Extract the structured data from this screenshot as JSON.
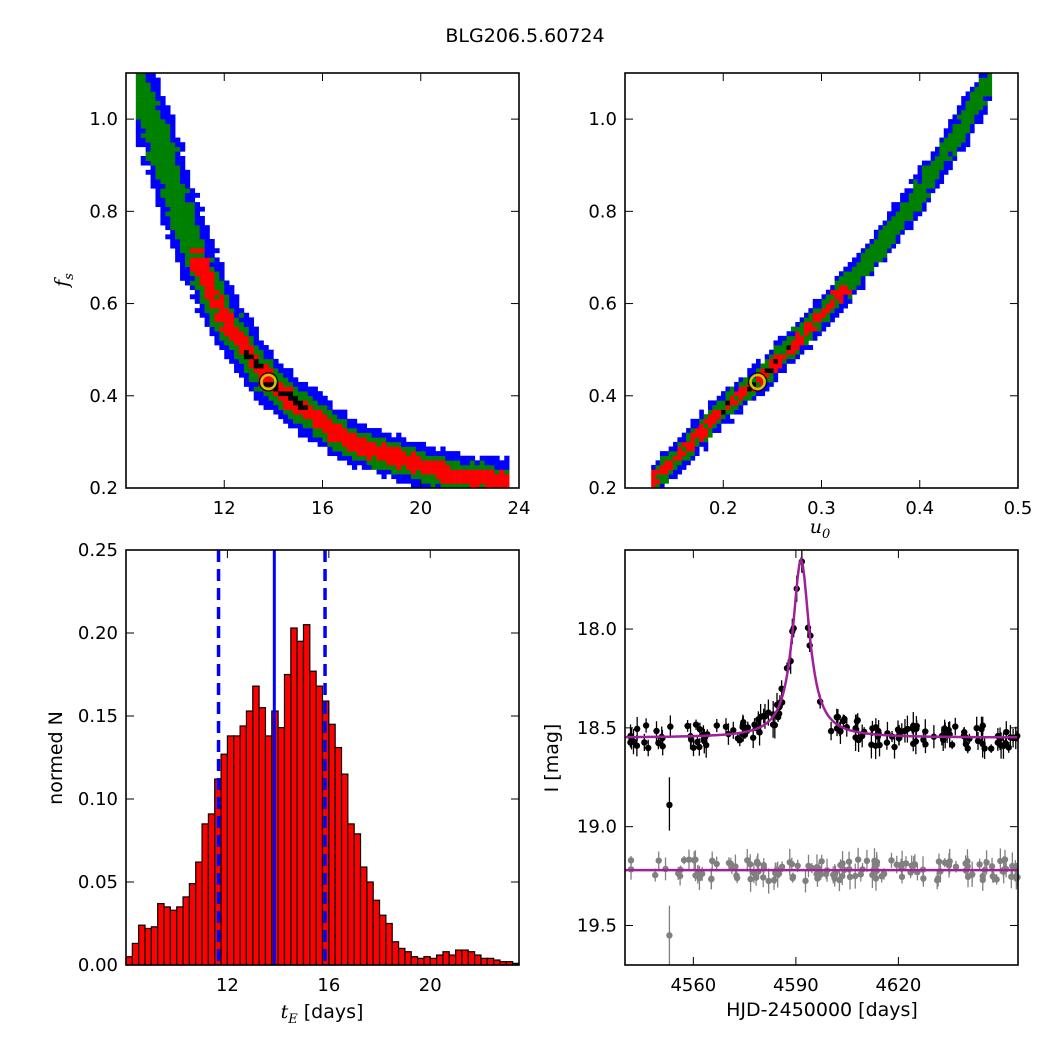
{
  "figure": {
    "title": "BLG206.5.60724"
  },
  "colors": {
    "outer_contour": "#0000ff",
    "middle_contour": "#008000",
    "inner_contour": "#ff0000",
    "best_contour": "#000000",
    "best_marker_ring": "#c8c800",
    "histogram_bar": "#ff0000",
    "median_line": "#0000ff",
    "model_curve": "#a0209a",
    "data_primary": "#000000",
    "data_secondary": "#808080"
  },
  "chart_data": [
    {
      "type": "heatmap",
      "panel": "top-left",
      "xlabel": "",
      "ylabel": "f_s",
      "ylabel_display": "f",
      "ylabel_sub": "s",
      "xlim": [
        8,
        24
      ],
      "ylim": [
        0.2,
        1.1
      ],
      "xticks": [
        "12",
        "16",
        "20",
        "24"
      ],
      "yticks": [
        "0.2",
        "0.4",
        "0.6",
        "0.8",
        "1.0"
      ],
      "ridge_x": [
        8.5,
        9.3,
        10.2,
        11.1,
        12.0,
        13.0,
        13.8,
        15.0,
        16.3,
        17.5,
        18.8,
        20.2,
        21.6,
        23.4
      ],
      "ridge_y": [
        1.07,
        0.96,
        0.8,
        0.67,
        0.57,
        0.49,
        0.43,
        0.38,
        0.33,
        0.29,
        0.27,
        0.245,
        0.225,
        0.215
      ],
      "best_fit": {
        "x": 13.8,
        "y": 0.43
      }
    },
    {
      "type": "heatmap",
      "panel": "top-right",
      "xlabel": "u_0",
      "xlabel_display": "u",
      "xlabel_sub": "0",
      "ylabel": "",
      "xlim": [
        0.1,
        0.5
      ],
      "ylim": [
        0.2,
        1.1
      ],
      "xticks": [
        "0.2",
        "0.3",
        "0.4",
        "0.5"
      ],
      "yticks": [
        "0.2",
        "0.4",
        "0.6",
        "0.8",
        "1.0"
      ],
      "ridge_x": [
        0.13,
        0.16,
        0.19,
        0.215,
        0.235,
        0.27,
        0.31,
        0.35,
        0.39,
        0.43,
        0.47
      ],
      "ridge_y": [
        0.22,
        0.28,
        0.35,
        0.4,
        0.43,
        0.51,
        0.6,
        0.7,
        0.81,
        0.94,
        1.08
      ],
      "best_fit": {
        "x": 0.235,
        "y": 0.43
      }
    },
    {
      "type": "bar",
      "panel": "bottom-left",
      "xlabel": "t_E  [days]",
      "xlabel_display": "t",
      "xlabel_sub": "E",
      "xlabel_suffix": "  [days]",
      "ylabel": "normed N",
      "xlim": [
        8,
        23.5
      ],
      "ylim": [
        0,
        0.25
      ],
      "xticks": [
        "12",
        "16",
        "20"
      ],
      "yticks": [
        "0.00",
        "0.05",
        "0.10",
        "0.15",
        "0.20",
        "0.25"
      ],
      "bin_start": 8.0,
      "bin_width": 0.25,
      "values": [
        0.005,
        0.013,
        0.024,
        0.022,
        0.023,
        0.037,
        0.035,
        0.033,
        0.035,
        0.041,
        0.049,
        0.062,
        0.085,
        0.091,
        0.112,
        0.127,
        0.138,
        0.138,
        0.144,
        0.153,
        0.168,
        0.155,
        0.138,
        0.153,
        0.143,
        0.175,
        0.203,
        0.195,
        0.205,
        0.177,
        0.168,
        0.159,
        0.145,
        0.131,
        0.115,
        0.085,
        0.079,
        0.059,
        0.05,
        0.039,
        0.03,
        0.025,
        0.014,
        0.01,
        0.008,
        0.005,
        0.004,
        0.005,
        0.004,
        0.006,
        0.008,
        0.006,
        0.009,
        0.009,
        0.008,
        0.006,
        0.004,
        0.004,
        0.003,
        0.002,
        0.002,
        0.001
      ],
      "median": 13.85,
      "bounds": [
        11.65,
        15.85
      ]
    },
    {
      "type": "scatter",
      "panel": "bottom-right",
      "xlabel": "HJD-2450000 [days]",
      "ylabel": "I [mag]",
      "xlim": [
        4540,
        4655
      ],
      "ylim": [
        19.7,
        17.6
      ],
      "y_inverted": true,
      "xticks": [
        "4560",
        "4590",
        "4620"
      ],
      "yticks": [
        "18.0",
        "18.5",
        "19.0",
        "19.5"
      ],
      "model": {
        "t0": 4591.5,
        "baseline_primary": 18.55,
        "baseline_secondary": 19.22,
        "peak_mag": 17.65
      }
    }
  ]
}
